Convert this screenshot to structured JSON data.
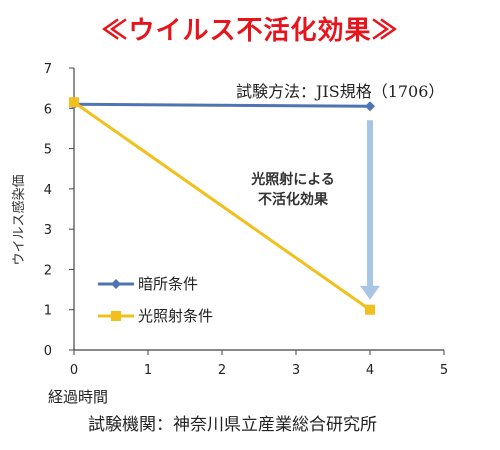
{
  "header": {
    "title": "≪ウイルス不活化効果≫",
    "method": "試験方法：JIS規格（1706）",
    "source": "試験機関：神奈川県立産業総合研究所"
  },
  "annotation": {
    "line1": "光照射による",
    "line2": "不活化効果"
  },
  "colors": {
    "title": "#e8141c",
    "dark_series": "#4f74b3",
    "light_series": "#f2c01d",
    "arrow": "#a8c5e6"
  },
  "chart_data": {
    "type": "line",
    "title": "≪ウイルス不活化効果≫",
    "xlabel": "経過時間",
    "ylabel": "ウイルス感染価",
    "xlim": [
      0,
      5
    ],
    "ylim": [
      0,
      7
    ],
    "x_ticks": [
      "0",
      "1",
      "2",
      "3",
      "4",
      "5"
    ],
    "y_ticks": [
      "0",
      "1",
      "2",
      "3",
      "4",
      "5",
      "6",
      "7"
    ],
    "grid": false,
    "legend_position": "bottom-left",
    "series": [
      {
        "name": "暗所条件",
        "color": "#4f74b3",
        "marker": "diamond",
        "x": [
          0,
          4
        ],
        "y": [
          6.1,
          6.05
        ]
      },
      {
        "name": "光照射条件",
        "color": "#f2c01d",
        "marker": "square",
        "x": [
          0,
          4
        ],
        "y": [
          6.15,
          1.0
        ]
      }
    ]
  }
}
